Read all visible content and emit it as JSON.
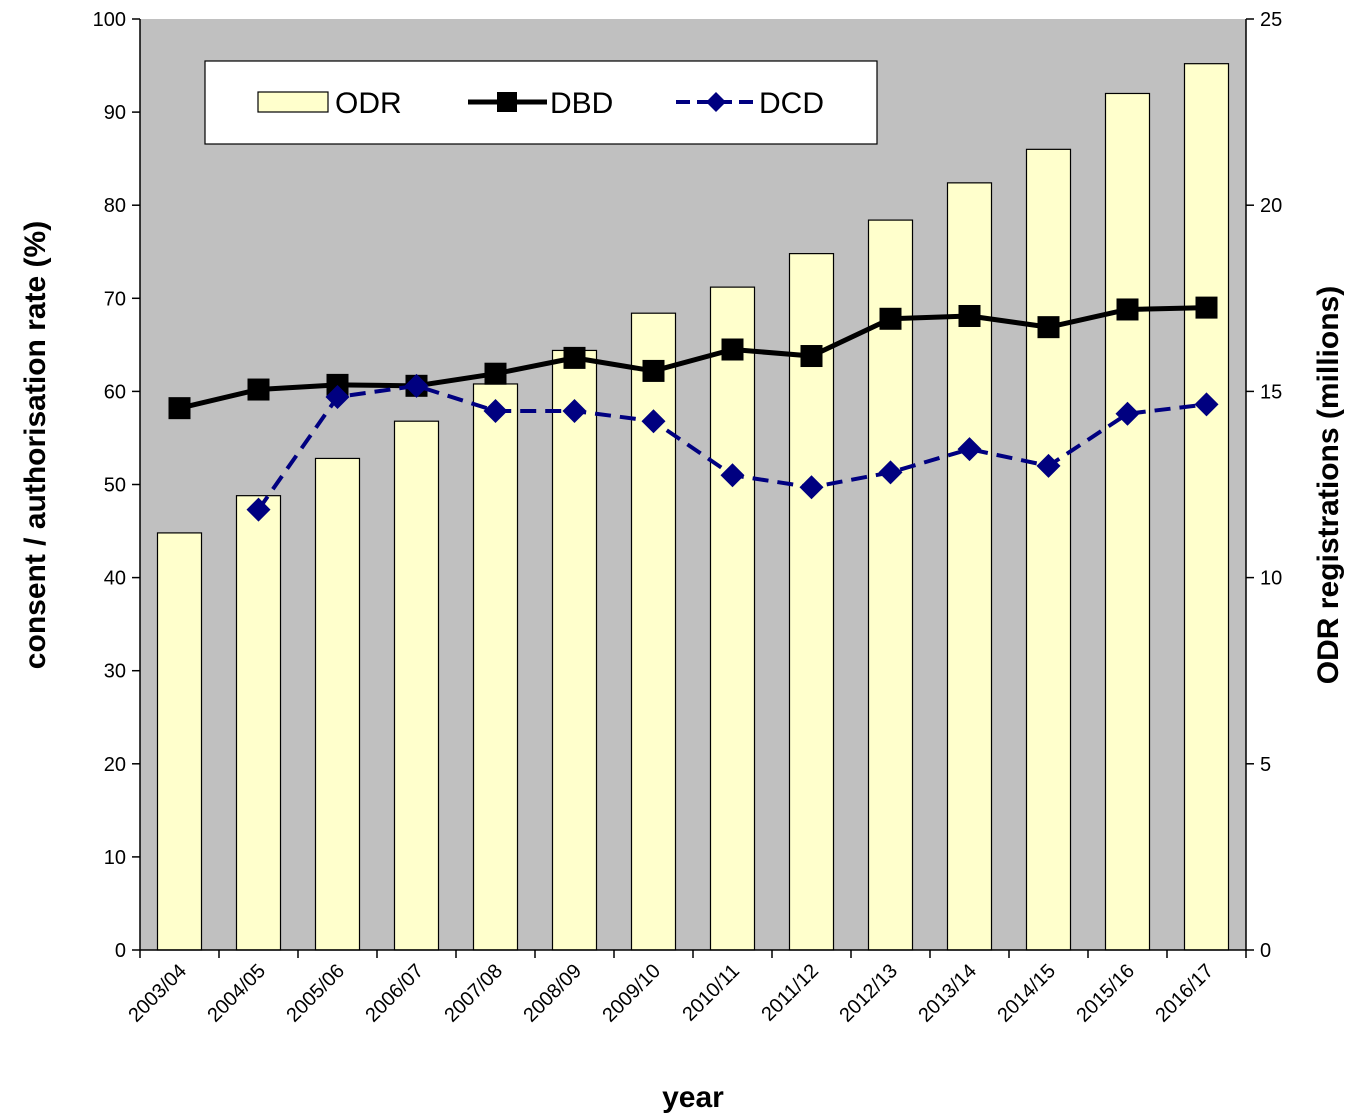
{
  "chart_data": {
    "type": "bar",
    "categories": [
      "2003/04",
      "2004/05",
      "2005/06",
      "2006/07",
      "2007/08",
      "2008/09",
      "2009/10",
      "2010/11",
      "2011/12",
      "2012/13",
      "2013/14",
      "2014/15",
      "2015/16",
      "2016/17"
    ],
    "xlabel": "year",
    "ylabel_left": "consent / authorisation rate (%)",
    "ylabel_right": "ODR registrations (millions)",
    "ylim_left": [
      0,
      100
    ],
    "ylim_right": [
      0,
      25
    ],
    "yticks_left": [
      "0",
      "10",
      "20",
      "30",
      "40",
      "50",
      "60",
      "70",
      "80",
      "90",
      "100"
    ],
    "yticks_right": [
      "0",
      "5",
      "10",
      "15",
      "20",
      "25"
    ],
    "grid": false,
    "legend_position": "top-left",
    "series": [
      {
        "name": "ODR",
        "type": "bar",
        "axis": "right",
        "values": [
          11.2,
          12.2,
          13.2,
          14.2,
          15.2,
          16.1,
          17.1,
          17.8,
          18.7,
          19.6,
          20.6,
          21.5,
          23.0,
          23.8
        ]
      },
      {
        "name": "DBD",
        "type": "line",
        "axis": "left",
        "values": [
          58.2,
          60.2,
          60.7,
          60.6,
          61.9,
          63.6,
          62.2,
          64.5,
          63.8,
          67.8,
          68.1,
          66.9,
          68.8,
          69.0
        ]
      },
      {
        "name": "DCD",
        "type": "line",
        "axis": "left",
        "values": [
          null,
          47.3,
          59.4,
          60.6,
          57.9,
          57.9,
          56.8,
          51.0,
          49.7,
          51.3,
          53.8,
          52.0,
          57.6,
          58.6
        ]
      }
    ],
    "colors": {
      "plot_background": "#c0c0c0",
      "bar_fill": "#ffffcc",
      "dbd_line": "#000000",
      "dcd_line": "#000080"
    }
  }
}
